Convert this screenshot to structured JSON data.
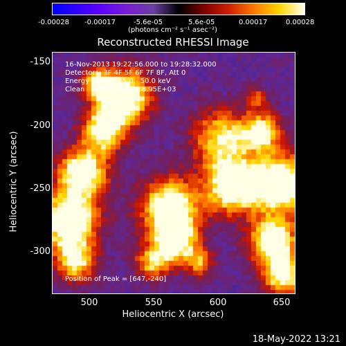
{
  "colorbar": {
    "ticks": [
      "-0.00028",
      "-0.00017",
      "-5.6e-05",
      "5.6e-05",
      "0.00017",
      "0.00028"
    ],
    "units": "(photons cm⁻² s⁻¹ asec⁻²)"
  },
  "title": "Reconstructed RHESSI Image",
  "annotations": {
    "time": "16-Nov-2013 19:22:56.000 to 19:28:32.000",
    "detectors": "Detectors: 3F 4F 5F 6F 7F 8F, Att 0",
    "energy": "Energy Range: 25.0 - 50.0 keV",
    "clean": "Clean     Total counts: 8.95E+03",
    "peak": "Position of Peak = [647,-240]"
  },
  "axes": {
    "xlabel": "Heliocentric X (arcsec)",
    "ylabel": "Heliocentric Y (arcsec)",
    "xticks": [
      "500",
      "550",
      "600",
      "650"
    ],
    "yticks": [
      "-150",
      "-200",
      "-250",
      "-300"
    ]
  },
  "stamp": "18-May-2022 13:21"
}
